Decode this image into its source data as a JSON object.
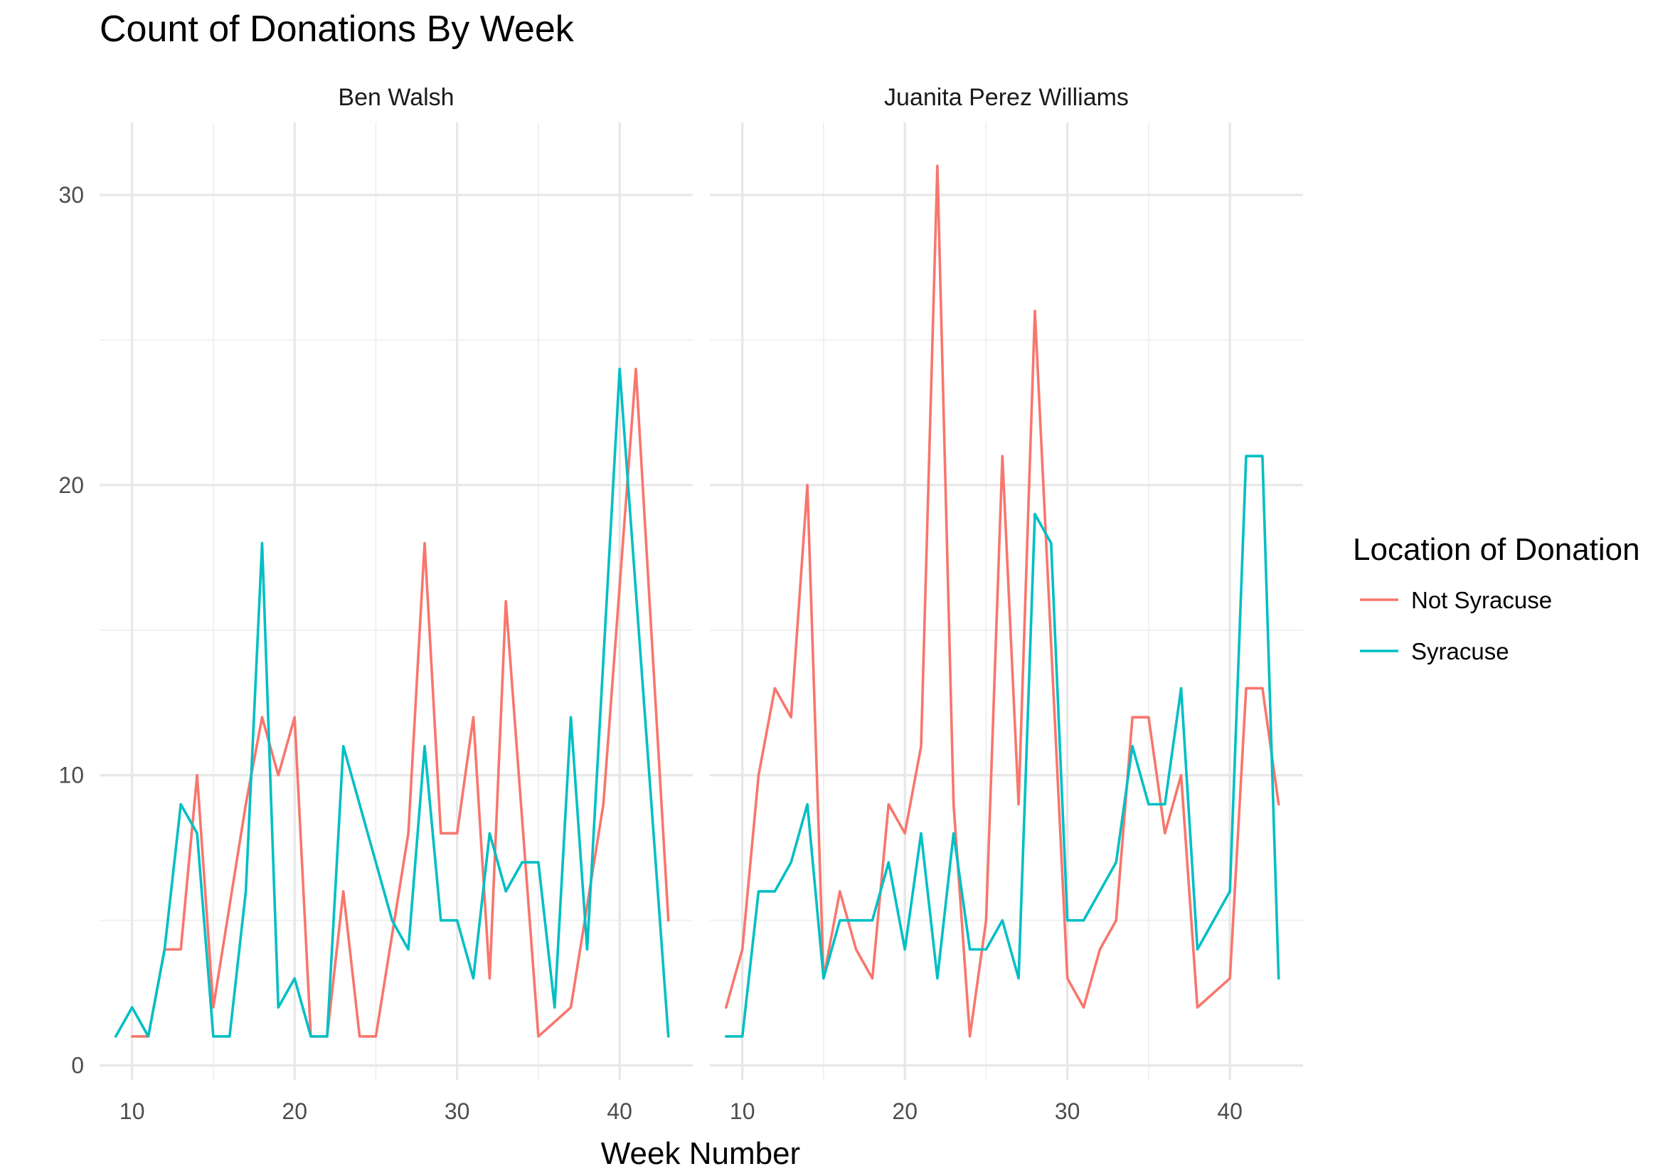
{
  "chart_data": {
    "type": "line",
    "title": "Count of Donations By Week",
    "xlabel": "Week Number",
    "ylabel": "",
    "xlim": [
      8,
      44.5
    ],
    "ylim": [
      -0.5,
      32.5
    ],
    "x_ticks": [
      10,
      20,
      30,
      40
    ],
    "x_minor": [
      15,
      25,
      35
    ],
    "y_ticks": [
      0,
      10,
      20,
      30
    ],
    "y_minor": [
      5,
      15,
      25
    ],
    "grid": true,
    "legend": {
      "title": "Location of Donation",
      "position": "right",
      "entries": [
        {
          "label": "Not Syracuse",
          "color": "#F8766D"
        },
        {
          "label": "Syracuse",
          "color": "#00BFC4"
        }
      ]
    },
    "panels": [
      {
        "name": "Ben Walsh",
        "series": [
          {
            "name": "Not Syracuse",
            "color": "#F8766D",
            "x": [
              10,
              11,
              12,
              13,
              14,
              15,
              17,
              18,
              19,
              20,
              21,
              22,
              23,
              24,
              25,
              27,
              28,
              29,
              30,
              31,
              32,
              33,
              35,
              37,
              39,
              41,
              43
            ],
            "y": [
              1,
              1,
              4,
              4,
              10,
              2,
              9,
              12,
              10,
              12,
              1,
              1,
              6,
              1,
              1,
              8,
              18,
              8,
              8,
              12,
              3,
              16,
              1,
              2,
              9,
              24,
              5
            ]
          },
          {
            "name": "Syracuse",
            "color": "#00BFC4",
            "x": [
              9,
              10,
              11,
              12,
              13,
              14,
              15,
              16,
              17,
              18,
              19,
              20,
              21,
              22,
              23,
              26,
              27,
              28,
              29,
              30,
              31,
              32,
              33,
              34,
              35,
              36,
              37,
              38,
              40,
              43
            ],
            "y": [
              1,
              2,
              1,
              4,
              9,
              8,
              1,
              1,
              6,
              18,
              2,
              3,
              1,
              1,
              11,
              5,
              4,
              11,
              5,
              5,
              3,
              8,
              6,
              7,
              7,
              2,
              12,
              4,
              24,
              1
            ]
          }
        ]
      },
      {
        "name": "Juanita Perez Williams",
        "series": [
          {
            "name": "Not Syracuse",
            "color": "#F8766D",
            "x": [
              9,
              10,
              11,
              12,
              13,
              14,
              15,
              16,
              17,
              18,
              19,
              20,
              21,
              22,
              23,
              24,
              25,
              26,
              27,
              28,
              30,
              31,
              32,
              33,
              34,
              35,
              36,
              37,
              38,
              40,
              41,
              42,
              43
            ],
            "y": [
              2,
              4,
              10,
              13,
              12,
              20,
              3,
              6,
              4,
              3,
              9,
              8,
              11,
              31,
              9,
              1,
              5,
              21,
              9,
              26,
              3,
              2,
              4,
              5,
              12,
              12,
              8,
              10,
              2,
              3,
              13,
              13,
              9
            ]
          },
          {
            "name": "Syracuse",
            "color": "#00BFC4",
            "x": [
              9,
              10,
              11,
              12,
              13,
              14,
              15,
              16,
              17,
              18,
              19,
              20,
              21,
              22,
              23,
              24,
              25,
              26,
              27,
              28,
              29,
              30,
              31,
              33,
              34,
              35,
              36,
              37,
              38,
              40,
              41,
              42,
              43
            ],
            "y": [
              1,
              1,
              6,
              6,
              7,
              9,
              3,
              5,
              5,
              5,
              7,
              4,
              8,
              3,
              8,
              4,
              4,
              5,
              3,
              19,
              18,
              5,
              5,
              7,
              11,
              9,
              9,
              13,
              4,
              6,
              21,
              21,
              3
            ]
          }
        ]
      }
    ]
  }
}
